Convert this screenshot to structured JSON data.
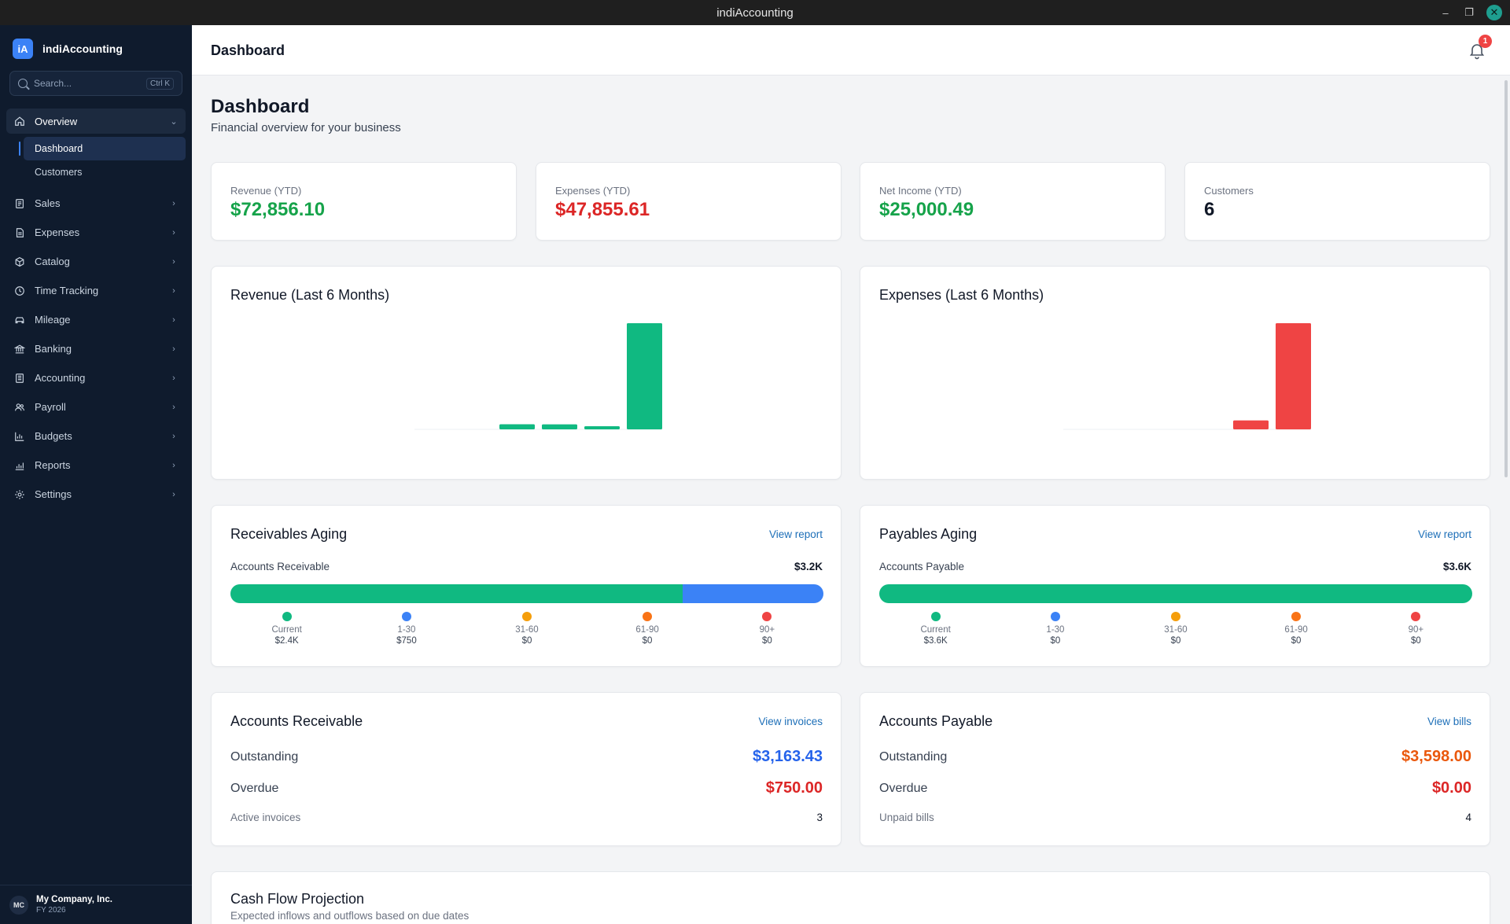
{
  "window": {
    "title": "indiAccounting"
  },
  "brand": {
    "logo": "iA",
    "name": "indiAccounting"
  },
  "search": {
    "placeholder": "Search...",
    "shortcut": "Ctrl K"
  },
  "nav": {
    "overview": {
      "label": "Overview",
      "icon": "home-icon"
    },
    "sub": [
      {
        "label": "Dashboard",
        "active": true
      },
      {
        "label": "Customers"
      }
    ],
    "items": [
      {
        "label": "Sales",
        "icon": "receipt-icon"
      },
      {
        "label": "Expenses",
        "icon": "document-icon"
      },
      {
        "label": "Catalog",
        "icon": "box-icon"
      },
      {
        "label": "Time Tracking",
        "icon": "clock-icon"
      },
      {
        "label": "Mileage",
        "icon": "car-icon"
      },
      {
        "label": "Banking",
        "icon": "bank-icon"
      },
      {
        "label": "Accounting",
        "icon": "ledger-icon"
      },
      {
        "label": "Payroll",
        "icon": "users-icon"
      },
      {
        "label": "Budgets",
        "icon": "bar-chart-icon"
      },
      {
        "label": "Reports",
        "icon": "report-icon"
      },
      {
        "label": "Settings",
        "icon": "gear-icon"
      }
    ]
  },
  "company": {
    "initials": "MC",
    "name": "My Company, Inc.",
    "fy": "FY 2026"
  },
  "header": {
    "title": "Dashboard",
    "notifications": "1"
  },
  "page": {
    "title": "Dashboard",
    "subtitle": "Financial overview for your business"
  },
  "stats": [
    {
      "label": "Revenue (YTD)",
      "value": "$72,856.10",
      "color": "#16a34a"
    },
    {
      "label": "Expenses (YTD)",
      "value": "$47,855.61",
      "color": "#dc2626"
    },
    {
      "label": "Net Income (YTD)",
      "value": "$25,000.49",
      "color": "#16a34a"
    },
    {
      "label": "Customers",
      "value": "6",
      "color": "#111827"
    }
  ],
  "charts": {
    "revenue": {
      "title": "Revenue (Last 6 Months)",
      "chart_data": {
        "type": "bar",
        "color": "#10b981",
        "values": [
          0,
          0,
          3500,
          3400,
          1800,
          72000
        ],
        "ylim": [
          0,
          72000
        ]
      }
    },
    "expenses": {
      "title": "Expenses (Last 6 Months)",
      "chart_data": {
        "type": "bar",
        "color": "#ef4444",
        "values": [
          0,
          0,
          0,
          0,
          3700,
          44000
        ],
        "ylim": [
          0,
          44000
        ]
      }
    }
  },
  "receivables_aging": {
    "title": "Receivables Aging",
    "link": "View report",
    "label": "Accounts Receivable",
    "total": "$3.2K",
    "fractions": [
      0.762,
      0.238,
      0,
      0,
      0
    ],
    "buckets": [
      {
        "name": "Current",
        "value": "$2.4K",
        "color": "#10b981"
      },
      {
        "name": "1-30",
        "value": "$750",
        "color": "#3b82f6"
      },
      {
        "name": "31-60",
        "value": "$0",
        "color": "#f59e0b"
      },
      {
        "name": "61-90",
        "value": "$0",
        "color": "#f97316"
      },
      {
        "name": "90+",
        "value": "$0",
        "color": "#ef4444"
      }
    ]
  },
  "payables_aging": {
    "title": "Payables Aging",
    "link": "View report",
    "label": "Accounts Payable",
    "total": "$3.6K",
    "fractions": [
      1,
      0,
      0,
      0,
      0
    ],
    "buckets": [
      {
        "name": "Current",
        "value": "$3.6K",
        "color": "#10b981"
      },
      {
        "name": "1-30",
        "value": "$0",
        "color": "#3b82f6"
      },
      {
        "name": "31-60",
        "value": "$0",
        "color": "#f59e0b"
      },
      {
        "name": "61-90",
        "value": "$0",
        "color": "#f97316"
      },
      {
        "name": "90+",
        "value": "$0",
        "color": "#ef4444"
      }
    ]
  },
  "ar": {
    "title": "Accounts Receivable",
    "link": "View invoices",
    "outstanding_label": "Outstanding",
    "outstanding": "$3,163.43",
    "overdue_label": "Overdue",
    "overdue": "$750.00",
    "count_label": "Active invoices",
    "count": "3"
  },
  "ap": {
    "title": "Accounts Payable",
    "link": "View bills",
    "outstanding_label": "Outstanding",
    "outstanding": "$3,598.00",
    "overdue_label": "Overdue",
    "overdue": "$0.00",
    "count_label": "Unpaid bills",
    "count": "4"
  },
  "cashflow": {
    "title": "Cash Flow Projection",
    "subtitle": "Expected inflows and outflows based on due dates"
  }
}
